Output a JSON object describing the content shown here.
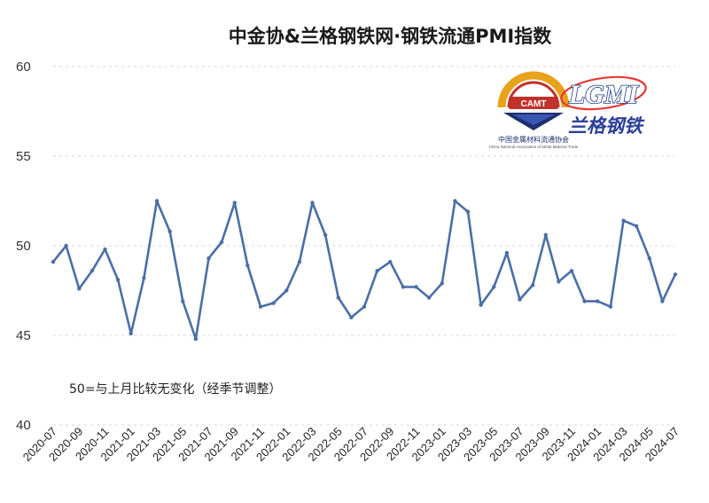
{
  "chart_data": {
    "type": "line",
    "title": "中金协&兰格钢铁网·钢铁流通PMI指数",
    "note": "50=与上月比较无变化（经季节调整）",
    "series_color": "#4a6fa5",
    "ylim": [
      40,
      60
    ],
    "yticks": [
      "40",
      "45",
      "50",
      "55",
      "60"
    ],
    "grid": true,
    "x": [
      "2020-07",
      "2020-08",
      "2020-09",
      "2020-10",
      "2020-11",
      "2020-12",
      "2021-01",
      "2021-02",
      "2021-03",
      "2021-04",
      "2021-05",
      "2021-06",
      "2021-07",
      "2021-08",
      "2021-09",
      "2021-10",
      "2021-11",
      "2021-12",
      "2022-01",
      "2022-02",
      "2022-03",
      "2022-04",
      "2022-05",
      "2022-06",
      "2022-07",
      "2022-08",
      "2022-09",
      "2022-10",
      "2022-11",
      "2022-12",
      "2023-01",
      "2023-02",
      "2023-03",
      "2023-04",
      "2023-05",
      "2023-06",
      "2023-07",
      "2023-08",
      "2023-09",
      "2023-10",
      "2023-11",
      "2023-12",
      "2024-01",
      "2024-02",
      "2024-03",
      "2024-04",
      "2024-05",
      "2024-06",
      "2024-07"
    ],
    "xtick_labels": [
      "2020-07",
      "2020-09",
      "2020-11",
      "2021-01",
      "2021-03",
      "2021-05",
      "2021-07",
      "2021-09",
      "2021-11",
      "2022-01",
      "2022-03",
      "2022-05",
      "2022-07",
      "2022-09",
      "2022-11",
      "2023-01",
      "2023-03",
      "2023-05",
      "2023-07",
      "2023-09",
      "2023-11",
      "2024-01",
      "2024-03",
      "2024-05",
      "2024-07"
    ],
    "values": [
      49.1,
      50.0,
      47.6,
      48.6,
      49.8,
      48.1,
      45.1,
      48.2,
      52.5,
      50.8,
      46.9,
      44.8,
      49.3,
      50.2,
      52.4,
      48.9,
      46.6,
      46.8,
      47.5,
      49.1,
      52.4,
      50.6,
      47.1,
      46.0,
      46.6,
      48.6,
      49.1,
      47.7,
      47.7,
      47.1,
      47.9,
      52.5,
      51.9,
      46.7,
      47.7,
      49.6,
      47.0,
      47.8,
      50.6,
      48.0,
      48.6,
      46.9,
      46.9,
      46.6,
      51.4,
      51.1,
      49.3,
      46.9,
      48.4
    ]
  },
  "logos": {
    "camt": {
      "badge_text": "CAMT",
      "name": "中国金属材料流通协会",
      "name_en": "China National Association of Metal Material Trade",
      "primary_color": "#1e2f6e",
      "accent_color": "#e8a21c"
    },
    "lgmi": {
      "wordmark": "LGMI",
      "name": "兰格钢铁",
      "primary_color": "#2b3f99"
    }
  }
}
